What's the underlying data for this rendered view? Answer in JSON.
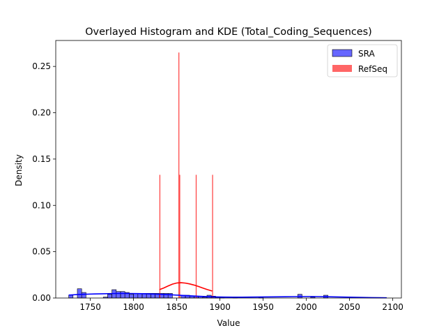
{
  "chart_data": {
    "type": "histogram",
    "title": "Overlayed Histogram and KDE (Total_Coding_Sequences)",
    "xlabel": "Value",
    "ylabel": "Density",
    "xlim": [
      1710,
      2110
    ],
    "ylim": [
      0,
      0.278
    ],
    "xticks": [
      1750,
      1800,
      1850,
      1900,
      1950,
      2000,
      2050,
      2100
    ],
    "yticks": [
      0.0,
      0.05,
      0.1,
      0.15,
      0.2,
      0.25
    ],
    "legend_position": "upper right",
    "series": [
      {
        "name": "SRA",
        "color": "#0000ff",
        "alpha": 0.6,
        "bin_width": 5,
        "bins": [
          {
            "x0": 1725,
            "value": 0.003
          },
          {
            "x0": 1735,
            "value": 0.01
          },
          {
            "x0": 1740,
            "value": 0.006
          },
          {
            "x0": 1765,
            "value": 0.001
          },
          {
            "x0": 1770,
            "value": 0.004
          },
          {
            "x0": 1775,
            "value": 0.009
          },
          {
            "x0": 1780,
            "value": 0.007
          },
          {
            "x0": 1785,
            "value": 0.007
          },
          {
            "x0": 1790,
            "value": 0.006
          },
          {
            "x0": 1795,
            "value": 0.004
          },
          {
            "x0": 1800,
            "value": 0.005
          },
          {
            "x0": 1805,
            "value": 0.005
          },
          {
            "x0": 1810,
            "value": 0.005
          },
          {
            "x0": 1815,
            "value": 0.005
          },
          {
            "x0": 1820,
            "value": 0.005
          },
          {
            "x0": 1825,
            "value": 0.005
          },
          {
            "x0": 1830,
            "value": 0.005
          },
          {
            "x0": 1835,
            "value": 0.005
          },
          {
            "x0": 1840,
            "value": 0.005
          },
          {
            "x0": 1855,
            "value": 0.003
          },
          {
            "x0": 1860,
            "value": 0.003
          },
          {
            "x0": 1865,
            "value": 0.002
          },
          {
            "x0": 1870,
            "value": 0.002
          },
          {
            "x0": 1875,
            "value": 0.002
          },
          {
            "x0": 1880,
            "value": 0.001
          },
          {
            "x0": 1885,
            "value": 0.003
          },
          {
            "x0": 1890,
            "value": 0.002
          },
          {
            "x0": 1895,
            "value": 0.001
          },
          {
            "x0": 1900,
            "value": 0.001
          },
          {
            "x0": 1915,
            "value": 0.001
          },
          {
            "x0": 1945,
            "value": 0.001
          },
          {
            "x0": 1990,
            "value": 0.004
          },
          {
            "x0": 2005,
            "value": 0.001
          },
          {
            "x0": 2020,
            "value": 0.003
          }
        ],
        "kde": {
          "x": [
            1725,
            1735,
            1745,
            1755,
            1765,
            1775,
            1785,
            1795,
            1805,
            1815,
            1825,
            1835,
            1845,
            1855,
            1865,
            1875,
            1885,
            1895,
            1905,
            1915,
            1925,
            1935,
            1945,
            1955,
            1965,
            1975,
            1985,
            1995,
            2005,
            2015,
            2025,
            2035,
            2045,
            2055,
            2065,
            2075,
            2085,
            2093
          ],
          "y": [
            0.0032,
            0.0037,
            0.0041,
            0.0044,
            0.0046,
            0.0048,
            0.0049,
            0.0049,
            0.0048,
            0.0046,
            0.0043,
            0.0039,
            0.0034,
            0.0029,
            0.0024,
            0.0019,
            0.0015,
            0.0012,
            0.001,
            0.0009,
            0.0009,
            0.001,
            0.0011,
            0.0012,
            0.0013,
            0.0014,
            0.0015,
            0.0016,
            0.0016,
            0.0015,
            0.0014,
            0.0012,
            0.001,
            0.0008,
            0.0006,
            0.0004,
            0.0003,
            0.0002
          ]
        }
      },
      {
        "name": "RefSeq",
        "color": "#ff0000",
        "alpha": 0.6,
        "spikes": [
          {
            "x": 1830.5,
            "value": 0.133
          },
          {
            "x": 1852.5,
            "value": 0.265
          },
          {
            "x": 1853.5,
            "value": 0.133
          },
          {
            "x": 1872.5,
            "value": 0.133
          },
          {
            "x": 1891.5,
            "value": 0.133
          }
        ],
        "kde": {
          "x": [
            1830,
            1835,
            1840,
            1845,
            1850,
            1855,
            1860,
            1865,
            1870,
            1875,
            1880,
            1885,
            1891
          ],
          "y": [
            0.009,
            0.0108,
            0.013,
            0.015,
            0.0162,
            0.0165,
            0.0161,
            0.0152,
            0.014,
            0.0125,
            0.0108,
            0.0092,
            0.0075
          ]
        }
      }
    ]
  }
}
